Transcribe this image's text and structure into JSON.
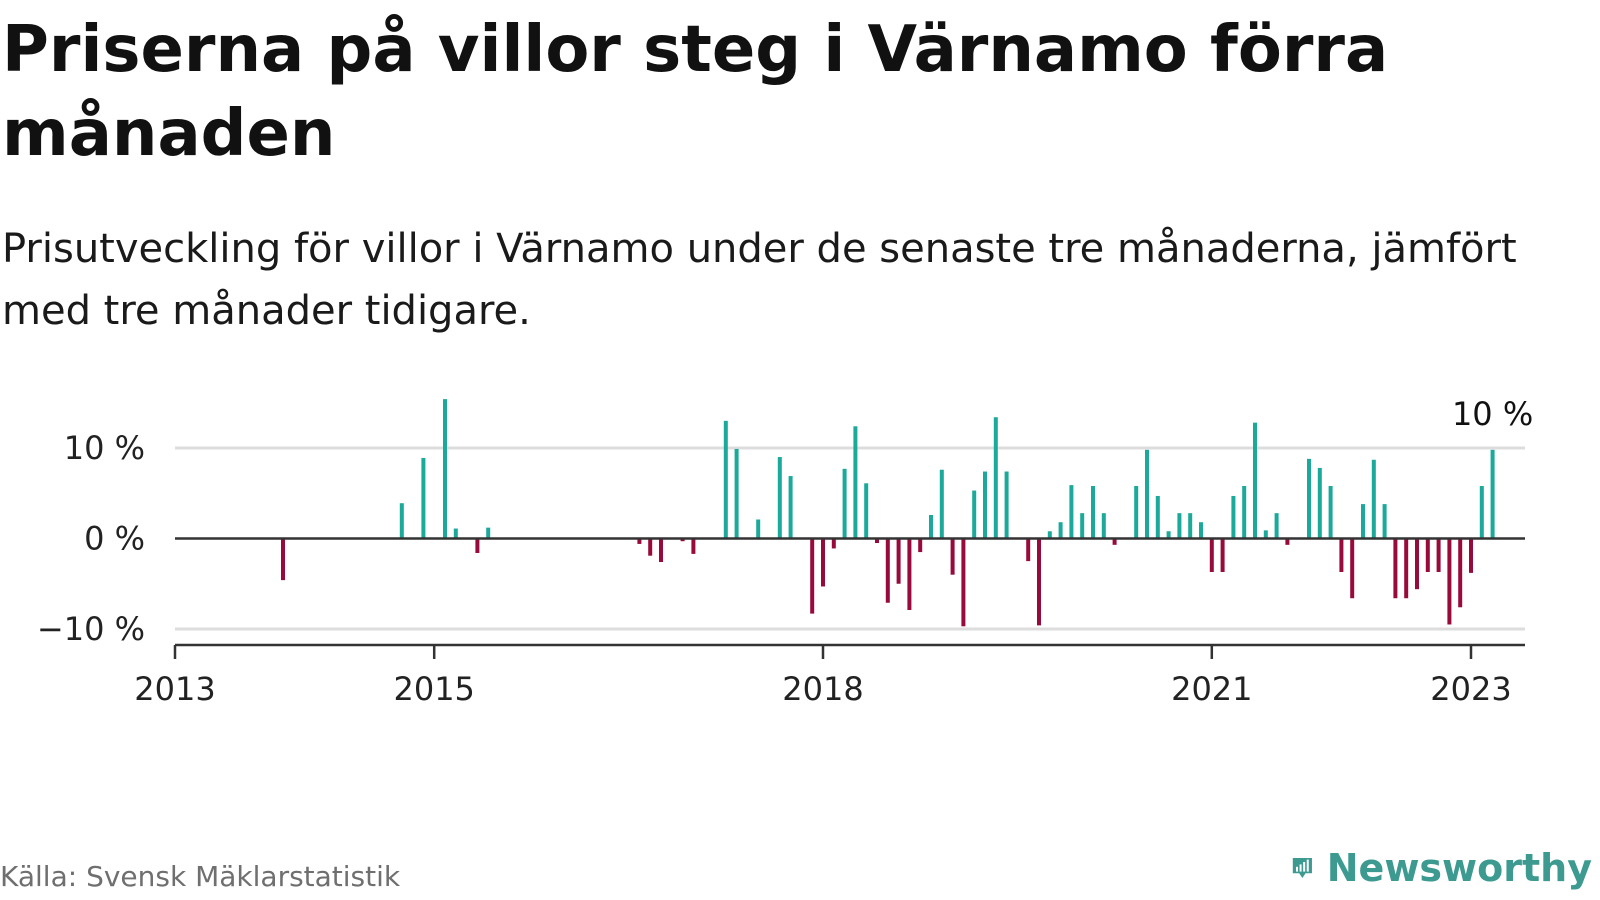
{
  "header": {
    "title": "Priserna på villor steg i Värnamo förra månaden",
    "subtitle": "Prisutveckling för villor i Värnamo under de senaste tre månaderna, jämfört med tre månader tidigare."
  },
  "footer": {
    "source": "Källa: Svensk Mäklarstatistik",
    "brand": "Newsworthy"
  },
  "colors": {
    "positive": "#1aa99a",
    "negative": "#990a3c",
    "grid": "#dddddd",
    "axis": "#333333",
    "brand": "#3d9a90"
  },
  "chart_data": {
    "type": "bar",
    "x_axis_ticks": [
      "2013",
      "2015",
      "2018",
      "2021",
      "2023"
    ],
    "y_axis_ticks": [
      {
        "value": 10,
        "label": "10 %"
      },
      {
        "value": 0,
        "label": "0 %"
      },
      {
        "value": -10,
        "label": "−10 %"
      }
    ],
    "ylim": [
      -11.5,
      15.5
    ],
    "xlim": [
      "2013-01",
      "2023-06"
    ],
    "last_value_label": "10 %",
    "grid": true,
    "series": [
      {
        "values": [
          {
            "date": "2013-11",
            "value": -4.6
          },
          {
            "date": "2014-10",
            "value": 3.9
          },
          {
            "date": "2014-12",
            "value": 8.9
          },
          {
            "date": "2015-02",
            "value": 15.4
          },
          {
            "date": "2015-03",
            "value": 1.1
          },
          {
            "date": "2015-05",
            "value": -1.6
          },
          {
            "date": "2015-06",
            "value": 1.2
          },
          {
            "date": "2016-08",
            "value": -0.6
          },
          {
            "date": "2016-09",
            "value": -1.9
          },
          {
            "date": "2016-10",
            "value": -2.6
          },
          {
            "date": "2016-12",
            "value": -0.3
          },
          {
            "date": "2017-01",
            "value": -1.7
          },
          {
            "date": "2017-04",
            "value": 13.0
          },
          {
            "date": "2017-05",
            "value": 9.9
          },
          {
            "date": "2017-07",
            "value": 2.1
          },
          {
            "date": "2017-09",
            "value": 9.0
          },
          {
            "date": "2017-10",
            "value": 6.9
          },
          {
            "date": "2017-12",
            "value": -8.3
          },
          {
            "date": "2018-01",
            "value": -5.3
          },
          {
            "date": "2018-02",
            "value": -1.1
          },
          {
            "date": "2018-03",
            "value": 7.7
          },
          {
            "date": "2018-04",
            "value": 12.4
          },
          {
            "date": "2018-05",
            "value": 6.1
          },
          {
            "date": "2018-06",
            "value": -0.5
          },
          {
            "date": "2018-07",
            "value": -7.1
          },
          {
            "date": "2018-08",
            "value": -5.0
          },
          {
            "date": "2018-09",
            "value": -7.9
          },
          {
            "date": "2018-10",
            "value": -1.5
          },
          {
            "date": "2018-11",
            "value": 2.6
          },
          {
            "date": "2018-12",
            "value": 7.6
          },
          {
            "date": "2019-01",
            "value": -4.0
          },
          {
            "date": "2019-02",
            "value": -9.7
          },
          {
            "date": "2019-03",
            "value": 5.3
          },
          {
            "date": "2019-04",
            "value": 7.4
          },
          {
            "date": "2019-05",
            "value": 13.4
          },
          {
            "date": "2019-06",
            "value": 7.4
          },
          {
            "date": "2019-08",
            "value": -2.5
          },
          {
            "date": "2019-09",
            "value": -9.6
          },
          {
            "date": "2019-10",
            "value": 0.8
          },
          {
            "date": "2019-11",
            "value": 1.8
          },
          {
            "date": "2019-12",
            "value": 5.9
          },
          {
            "date": "2020-01",
            "value": 2.8
          },
          {
            "date": "2020-02",
            "value": 5.8
          },
          {
            "date": "2020-03",
            "value": 2.8
          },
          {
            "date": "2020-04",
            "value": -0.7
          },
          {
            "date": "2020-06",
            "value": 5.8
          },
          {
            "date": "2020-07",
            "value": 9.8
          },
          {
            "date": "2020-08",
            "value": 4.7
          },
          {
            "date": "2020-09",
            "value": 0.8
          },
          {
            "date": "2020-10",
            "value": 2.8
          },
          {
            "date": "2020-11",
            "value": 2.8
          },
          {
            "date": "2020-12",
            "value": 1.8
          },
          {
            "date": "2021-01",
            "value": -3.7
          },
          {
            "date": "2021-02",
            "value": -3.7
          },
          {
            "date": "2021-03",
            "value": 4.7
          },
          {
            "date": "2021-04",
            "value": 5.8
          },
          {
            "date": "2021-05",
            "value": 12.8
          },
          {
            "date": "2021-06",
            "value": 0.9
          },
          {
            "date": "2021-07",
            "value": 2.8
          },
          {
            "date": "2021-08",
            "value": -0.7
          },
          {
            "date": "2021-10",
            "value": 8.8
          },
          {
            "date": "2021-11",
            "value": 7.8
          },
          {
            "date": "2021-12",
            "value": 5.8
          },
          {
            "date": "2022-01",
            "value": -3.7
          },
          {
            "date": "2022-02",
            "value": -6.6
          },
          {
            "date": "2022-03",
            "value": 3.8
          },
          {
            "date": "2022-04",
            "value": 8.7
          },
          {
            "date": "2022-05",
            "value": 3.8
          },
          {
            "date": "2022-06",
            "value": -6.6
          },
          {
            "date": "2022-07",
            "value": -6.6
          },
          {
            "date": "2022-08",
            "value": -5.6
          },
          {
            "date": "2022-09",
            "value": -3.7
          },
          {
            "date": "2022-10",
            "value": -3.7
          },
          {
            "date": "2022-11",
            "value": -9.5
          },
          {
            "date": "2022-12",
            "value": -7.6
          },
          {
            "date": "2023-01",
            "value": -3.8
          },
          {
            "date": "2023-02",
            "value": 5.8
          },
          {
            "date": "2023-03",
            "value": 9.8
          }
        ]
      }
    ]
  }
}
